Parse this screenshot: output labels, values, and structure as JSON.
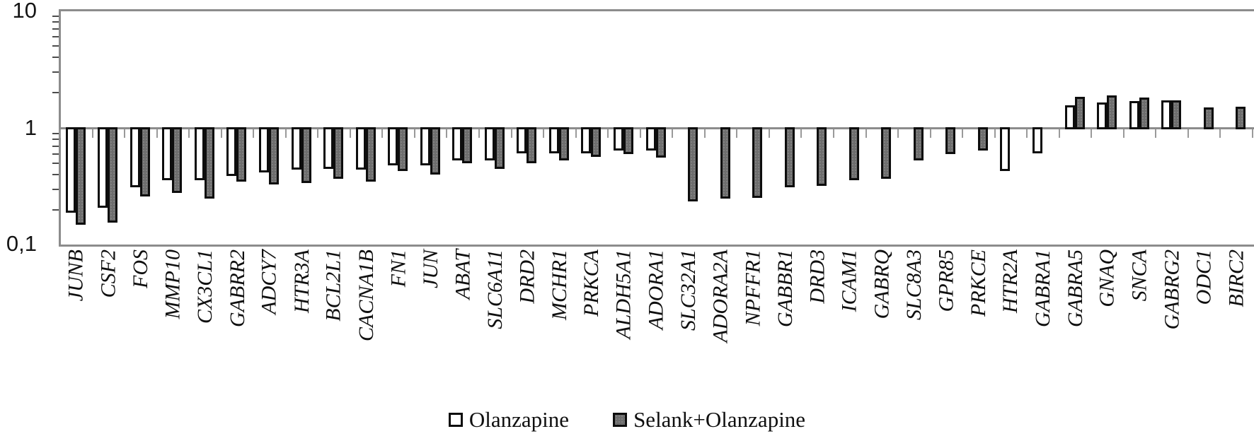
{
  "chart_data": {
    "type": "bar",
    "scale": "log",
    "ylim": [
      0.1,
      10
    ],
    "ytick_labels": [
      "10",
      "1",
      "0,1"
    ],
    "grid": "off",
    "legend_position": "bottom-center",
    "categories": [
      "JUNB",
      "CSF2",
      "FOS",
      "MMP10",
      "CX3CL1",
      "GABRR2",
      "ADCY7",
      "HTR3A",
      "BCL2L1",
      "CACNA1B",
      "FN1",
      "JUN",
      "ABAT",
      "SLC6A11",
      "DRD2",
      "MCHR1",
      "PRKCA",
      "ALDH5A1",
      "ADORA1",
      "SLC32A1",
      "ADORA2A",
      "NPFFR1",
      "GABBR1",
      "DRD3",
      "ICAM1",
      "GABRQ",
      "SLC8A3",
      "GPR85",
      "PRKCE",
      "HTR2A",
      "GABRA1",
      "GABRA5",
      "GNAQ",
      "SNCA",
      "GABRG2",
      "ODC1",
      "BIRC2"
    ],
    "series": [
      {
        "name": "Olanzapine",
        "fill": "#ffffff",
        "values": [
          0.19,
          0.21,
          0.31,
          0.36,
          0.36,
          0.39,
          0.42,
          0.44,
          0.45,
          0.44,
          0.48,
          0.48,
          0.53,
          0.53,
          0.61,
          0.61,
          0.61,
          0.64,
          0.64,
          null,
          null,
          null,
          null,
          null,
          null,
          null,
          null,
          null,
          null,
          0.43,
          0.61,
          1.56,
          1.65,
          1.7,
          1.72,
          null,
          null
        ]
      },
      {
        "name": "Selank+Olanzapine",
        "fill": "#6d6d6d",
        "values": [
          0.15,
          0.155,
          0.26,
          0.28,
          0.25,
          0.35,
          0.33,
          0.34,
          0.37,
          0.35,
          0.43,
          0.4,
          0.5,
          0.45,
          0.5,
          0.53,
          0.57,
          0.6,
          0.56,
          0.235,
          0.25,
          0.255,
          0.31,
          0.32,
          0.36,
          0.37,
          0.53,
          0.6,
          0.64,
          null,
          null,
          1.85,
          1.88,
          1.82,
          1.72,
          1.5,
          1.52
        ]
      }
    ],
    "colors": {
      "bar_border": "#0d0d0d",
      "axis_line": "#8c8c8c",
      "bar_white": "#ffffff",
      "bar_gray": "#6d6d6d"
    }
  }
}
